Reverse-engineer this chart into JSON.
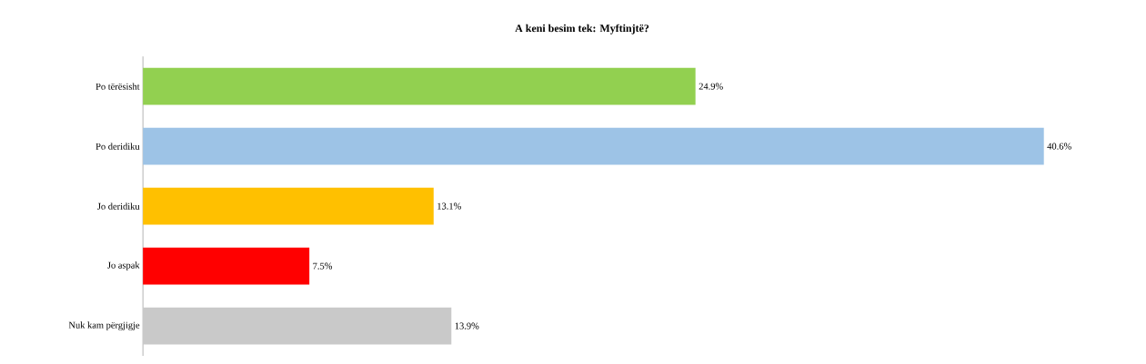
{
  "chart_data": {
    "type": "bar",
    "orientation": "horizontal",
    "title": "A keni besim tek: Myftinjtë?",
    "categories": [
      "Po tërësisht",
      "Po deridiku",
      "Jo deridiku",
      "Jo aspak",
      "Nuk kam përgjigje"
    ],
    "values": [
      24.9,
      40.6,
      13.1,
      7.5,
      13.9
    ],
    "value_labels": [
      "24.9%",
      "40.6%",
      "13.1%",
      "7.5%",
      "13.9%"
    ],
    "colors": [
      "#92d050",
      "#9dc3e6",
      "#ffc000",
      "#ff0000",
      "#c9c9c9"
    ],
    "grid": false
  }
}
